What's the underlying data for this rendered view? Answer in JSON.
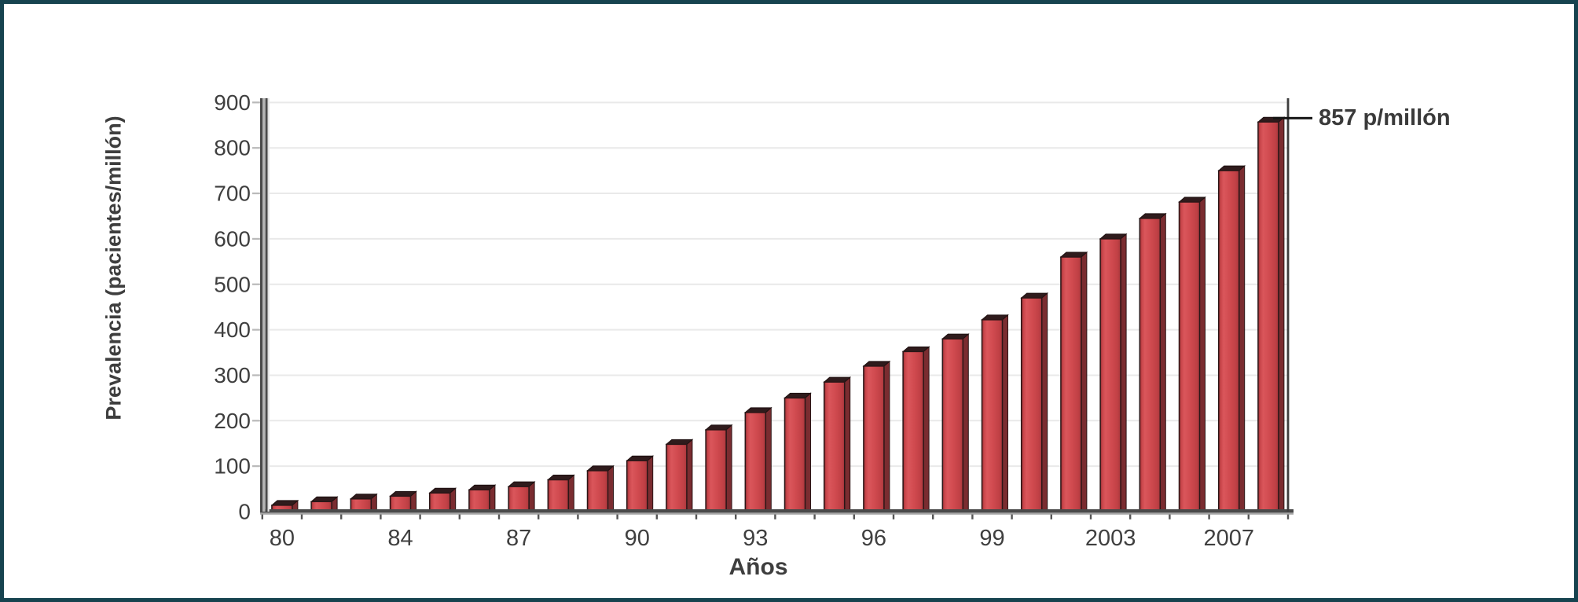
{
  "figure": {
    "border_color": "#16434f",
    "background_color": "#ffffff"
  },
  "chart_data": {
    "type": "bar",
    "title": "",
    "xlabel": "Años",
    "ylabel": "Prevalencia (pacientes/millón)",
    "ylim": [
      0,
      900
    ],
    "y_ticks": [
      0,
      100,
      200,
      300,
      400,
      500,
      600,
      700,
      800,
      900
    ],
    "grid": "horizontal-light",
    "legend": "none",
    "bar_count": 26,
    "values": [
      14,
      22,
      28,
      34,
      41,
      48,
      55,
      70,
      90,
      112,
      148,
      180,
      218,
      250,
      285,
      320,
      352,
      380,
      422,
      470,
      560,
      600,
      645,
      681,
      750,
      857
    ],
    "x_tick_labels": [
      {
        "index": 0,
        "label": "80"
      },
      {
        "index": 3,
        "label": "84"
      },
      {
        "index": 6,
        "label": "87"
      },
      {
        "index": 9,
        "label": "90"
      },
      {
        "index": 12,
        "label": "93"
      },
      {
        "index": 15,
        "label": "96"
      },
      {
        "index": 18,
        "label": "99"
      },
      {
        "index": 21,
        "label": "2003"
      },
      {
        "index": 24,
        "label": "2007"
      }
    ],
    "annotation": {
      "text": "857 p/millón",
      "value": 857,
      "bar_index": 25
    },
    "colors": {
      "bar_face": "#d04a4f",
      "bar_face_light": "#da565b",
      "bar_face_dark": "#a8383d",
      "bar_left_edge": "#8f2d32",
      "bar_side": "#7a2c30",
      "bar_top": "#2f1b1c",
      "bar_outline": "#2b1617",
      "axis": "#4a4a4a",
      "axis_light": "#b3b3b3",
      "right_axis": "#3e3e3e",
      "gridline": "#e9e9e9",
      "tick_label": "#3f3f3f",
      "annotation_line": "#151515"
    }
  }
}
